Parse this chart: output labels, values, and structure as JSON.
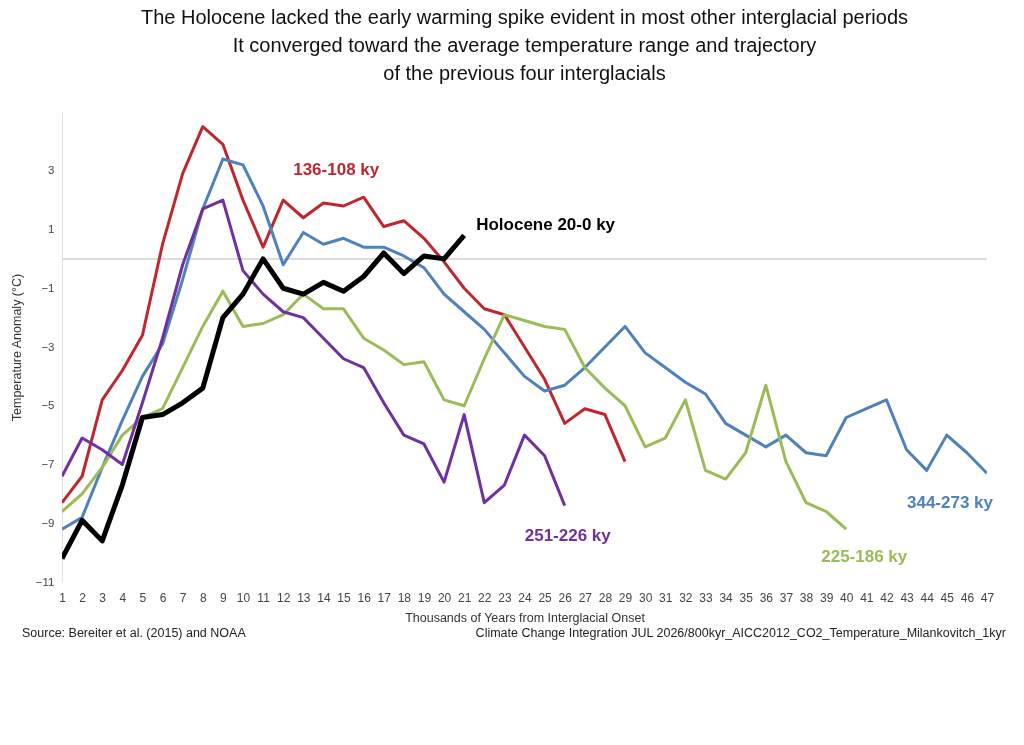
{
  "chart_data": {
    "type": "line",
    "title": [
      "The Holocene lacked the early warming spike evident in most other interglacial periods",
      "It converged toward the average temperature range and trajectory",
      "of the previous four interglacials"
    ],
    "xlabel": "Thousands of Years from Interglacial Onset",
    "ylabel": "Temperature Anomaly (°C)",
    "xlim": [
      1,
      47
    ],
    "xticks": [
      1,
      2,
      3,
      4,
      5,
      6,
      7,
      8,
      9,
      10,
      11,
      12,
      13,
      14,
      15,
      16,
      17,
      18,
      19,
      20,
      21,
      22,
      23,
      24,
      25,
      26,
      27,
      28,
      29,
      30,
      31,
      32,
      33,
      34,
      35,
      36,
      37,
      38,
      39,
      40,
      41,
      42,
      43,
      44,
      45,
      46,
      47
    ],
    "ylim": [
      -11,
      5
    ],
    "yticks": [
      -11,
      -9,
      -7,
      -5,
      -3,
      -1,
      1,
      3
    ],
    "ref_lines": [
      {
        "axis": "y",
        "value": 0,
        "color": "#d0d0d0"
      }
    ],
    "series": [
      {
        "name": "136-108 ky",
        "color": "#c0262d",
        "x": [
          1,
          2,
          3,
          4,
          5,
          6,
          7,
          8,
          9,
          10,
          11,
          12,
          13,
          14,
          15,
          16,
          17,
          18,
          19,
          20,
          21,
          22,
          23,
          24,
          25,
          26,
          27,
          28,
          29
        ],
        "values": [
          -8.3,
          -7.4,
          -4.8,
          -3.8,
          -2.6,
          0.5,
          2.9,
          4.5,
          3.9,
          2.0,
          0.4,
          2.0,
          1.4,
          1.9,
          1.8,
          2.1,
          1.1,
          1.3,
          0.7,
          -0.1,
          -1.0,
          -1.7,
          -1.9,
          -3.0,
          -4.1,
          -5.6,
          -5.1,
          -5.3,
          -6.9
        ]
      },
      {
        "name": "344-273 ky",
        "color": "#4f81bd",
        "x": [
          1,
          2,
          3,
          4,
          5,
          6,
          7,
          8,
          9,
          10,
          11,
          12,
          13,
          14,
          15,
          16,
          17,
          18,
          19,
          20,
          21,
          22,
          23,
          24,
          25,
          26,
          27,
          28,
          29,
          30,
          31,
          32,
          33,
          34,
          35,
          36,
          37,
          38,
          39,
          40,
          41,
          42,
          43,
          44,
          45,
          46,
          47
        ],
        "values": [
          -9.2,
          -8.8,
          -7.1,
          -5.5,
          -4.0,
          -2.9,
          -0.7,
          1.7,
          3.4,
          3.2,
          1.8,
          -0.2,
          0.9,
          0.5,
          0.7,
          0.4,
          0.4,
          0.1,
          -0.3,
          -1.2,
          -1.8,
          -2.4,
          -3.2,
          -4.0,
          -4.5,
          -4.3,
          -3.7,
          -3.0,
          -2.3,
          -3.2,
          -3.7,
          -4.2,
          -4.6,
          -5.6,
          -6.0,
          -6.4,
          -6.0,
          -6.6,
          -6.7,
          -5.4,
          -5.1,
          -4.8,
          -6.5,
          -7.2,
          -6.0,
          -6.6,
          -7.3
        ]
      },
      {
        "name": "225-186 ky",
        "color": "#9bbb59",
        "x": [
          1,
          2,
          3,
          4,
          5,
          6,
          7,
          8,
          9,
          10,
          11,
          12,
          13,
          14,
          15,
          16,
          17,
          18,
          19,
          20,
          21,
          22,
          23,
          24,
          25,
          26,
          27,
          28,
          29,
          30,
          31,
          32,
          33,
          34,
          35,
          36,
          37,
          38,
          39,
          40
        ],
        "values": [
          -8.6,
          -8.0,
          -7.1,
          -6.0,
          -5.4,
          -5.1,
          -3.7,
          -2.3,
          -1.1,
          -2.3,
          -2.2,
          -1.9,
          -1.2,
          -1.7,
          -1.7,
          -2.7,
          -3.1,
          -3.6,
          -3.5,
          -4.8,
          -5.0,
          -3.4,
          -1.9,
          -2.1,
          -2.3,
          -2.4,
          -3.7,
          -4.4,
          -5.0,
          -6.4,
          -6.1,
          -4.8,
          -7.2,
          -7.5,
          -6.6,
          -4.3,
          -6.9,
          -8.3,
          -8.6,
          -9.2
        ]
      },
      {
        "name": "251-226 ky",
        "color": "#7030a0",
        "x": [
          1,
          2,
          3,
          4,
          5,
          6,
          7,
          8,
          9,
          10,
          11,
          12,
          13,
          14,
          15,
          16,
          17,
          18,
          19,
          20,
          21,
          22,
          23,
          24,
          25,
          26
        ],
        "values": [
          -7.4,
          -6.1,
          -6.5,
          -7.0,
          -4.9,
          -2.7,
          -0.2,
          1.7,
          2.0,
          -0.4,
          -1.2,
          -1.8,
          -2.0,
          -2.7,
          -3.4,
          -3.7,
          -4.9,
          -6.0,
          -6.3,
          -7.6,
          -5.3,
          -8.3,
          -7.7,
          -6.0,
          -6.7,
          -8.4
        ]
      },
      {
        "name": "Holocene 20-0 ky",
        "color": "#000000",
        "x": [
          1,
          2,
          3,
          4,
          5,
          6,
          7,
          8,
          9,
          10,
          11,
          12,
          13,
          14,
          15,
          16,
          17,
          18,
          19,
          20,
          21
        ],
        "values": [
          -10.2,
          -8.9,
          -9.6,
          -7.7,
          -5.4,
          -5.3,
          -4.9,
          -4.4,
          -2.0,
          -1.2,
          0.0,
          -1.0,
          -1.2,
          -0.8,
          -1.1,
          -0.6,
          0.2,
          -0.5,
          0.1,
          0.0,
          0.8
        ]
      }
    ],
    "annotations": [
      "Source: Bereiter et al. (2015) and NOAA",
      "Climate Change Integration JUL 2026/800kyr_AICC2012_CO2_Temperature_Milankovitch_1kyr"
    ]
  }
}
